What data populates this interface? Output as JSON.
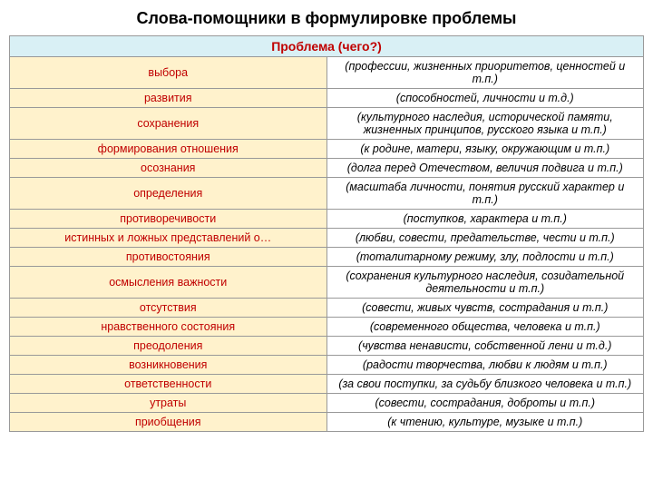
{
  "title": "Слова-помощники в формулировке проблемы",
  "header": "Проблема (чего?)",
  "rows": [
    {
      "left": "выбора",
      "right": "(профессии, жизненных приоритетов, ценностей и т.п.)"
    },
    {
      "left": "развития",
      "right": "(способностей, личности и т.д.)"
    },
    {
      "left": "сохранения",
      "right": "(культурного наследия, исторической памяти, жизненных принципов, русского языка и т.п.)"
    },
    {
      "left": "формирования отношения",
      "right": "(к родине, матери, языку, окружающим и т.п.)"
    },
    {
      "left": "осознания",
      "right": "(долга перед Отечеством, величия подвига и т.п.)"
    },
    {
      "left": "определения",
      "right": "(масштаба личности, понятия русский характер и т.п.)"
    },
    {
      "left": "противоречивости",
      "right": "(поступков, характера и т.п.)"
    },
    {
      "left": "истинных и ложных представлений о…",
      "right": "(любви, совести, предательстве, чести и т.п.)"
    },
    {
      "left": "противостояния",
      "right": "(тоталитарному режиму, злу, подлости и т.п.)"
    },
    {
      "left": "осмысления важности",
      "right": "(сохранения культурного наследия, созидательной деятельности и т.п.)"
    },
    {
      "left": "отсутствия",
      "right": "(совести, живых чувств, сострадания и т.п.)"
    },
    {
      "left": "нравственного состояния",
      "right": "(современного общества, человека и т.п.)"
    },
    {
      "left": "преодоления",
      "right": "(чувства ненависти, собственной лени и т.д.)"
    },
    {
      "left": "возникновения",
      "right": "(радости творчества, любви к людям и т.п.)"
    },
    {
      "left": "ответственности",
      "right": "(за свои поступки, за судьбу близкого человека и т.п.)"
    },
    {
      "left": "утраты",
      "right": "(совести, сострадания, доброты и т.п.)"
    },
    {
      "left": "приобщения",
      "right": "(к чтению, культуре, музыке и т.п.)"
    }
  ],
  "colors": {
    "header_bg": "#d9f0f5",
    "left_bg": "#fff2cc",
    "accent_text": "#c00000",
    "border": "#999999"
  }
}
